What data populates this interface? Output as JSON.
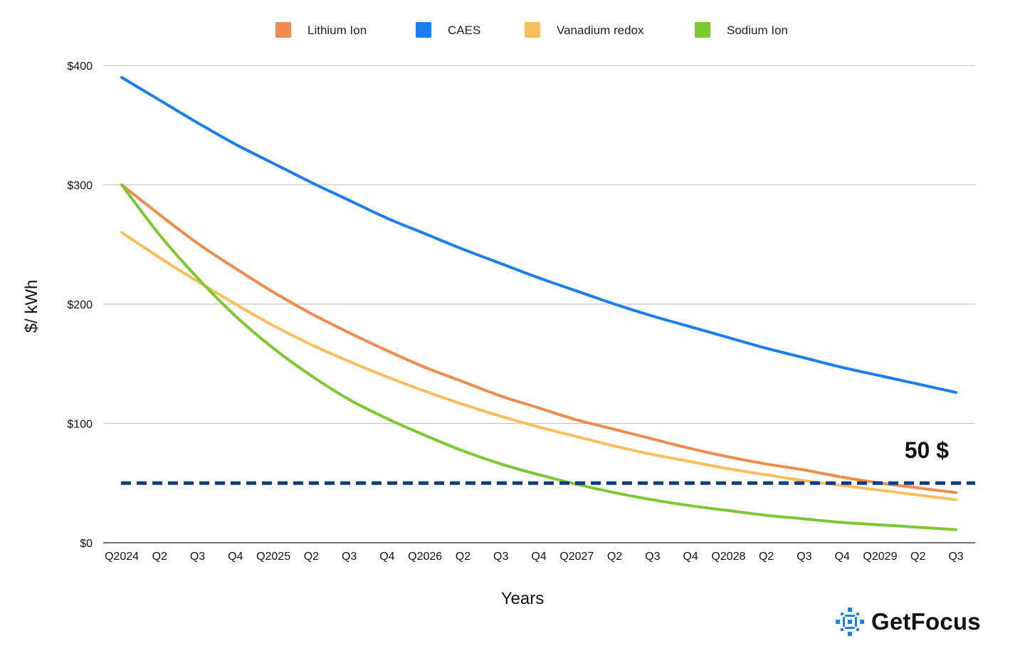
{
  "chart_data": {
    "type": "line",
    "title": "",
    "xlabel": "Years",
    "ylabel": "$/ kWh",
    "categories": [
      "Q2024",
      "Q2",
      "Q3",
      "Q4",
      "Q2025",
      "Q2",
      "Q3",
      "Q4",
      "Q2026",
      "Q2",
      "Q3",
      "Q4",
      "Q2027",
      "Q2",
      "Q3",
      "Q4",
      "Q2028",
      "Q2",
      "Q3",
      "Q4",
      "Q2029",
      "Q2",
      "Q3"
    ],
    "ylim": [
      0,
      400
    ],
    "yticks": [
      0,
      100,
      200,
      300,
      400
    ],
    "ytick_labels": [
      "$0",
      "$100",
      "$200",
      "$300",
      "$400"
    ],
    "grid": true,
    "legend_position": "top-center",
    "series": [
      {
        "name": "Lithium Ion",
        "color": "#f08c4a",
        "values": [
          300,
          275,
          251,
          230,
          210,
          192,
          176,
          161,
          147,
          135,
          123,
          113,
          103,
          95,
          87,
          79,
          72,
          66,
          61,
          55,
          50,
          46,
          42
        ]
      },
      {
        "name": "CAES",
        "color": "#1a7ef0",
        "values": [
          390,
          371,
          352,
          334,
          318,
          302,
          287,
          272,
          259,
          246,
          234,
          222,
          211,
          200,
          190,
          181,
          172,
          163,
          155,
          147,
          140,
          133,
          126
        ]
      },
      {
        "name": "Vanadium redox",
        "color": "#fcbd5c",
        "values": [
          260,
          239,
          219,
          200,
          182,
          166,
          152,
          139,
          127,
          116,
          106,
          97,
          89,
          81,
          74,
          68,
          62,
          57,
          52,
          48,
          44,
          40,
          36
        ]
      },
      {
        "name": "Sodium Ion",
        "color": "#7dc832",
        "values": [
          300,
          258,
          222,
          190,
          163,
          140,
          120,
          104,
          90,
          77,
          66,
          57,
          49,
          42,
          36,
          31,
          27,
          23,
          20,
          17,
          15,
          13,
          11
        ]
      }
    ],
    "reference_line": {
      "value": 50,
      "label": "50 $",
      "color": "#0d3c82",
      "style": "dashed"
    }
  },
  "brand": {
    "name": "GetFocus",
    "icon": "getfocus-logo-icon",
    "color": "#1a7ef0"
  }
}
